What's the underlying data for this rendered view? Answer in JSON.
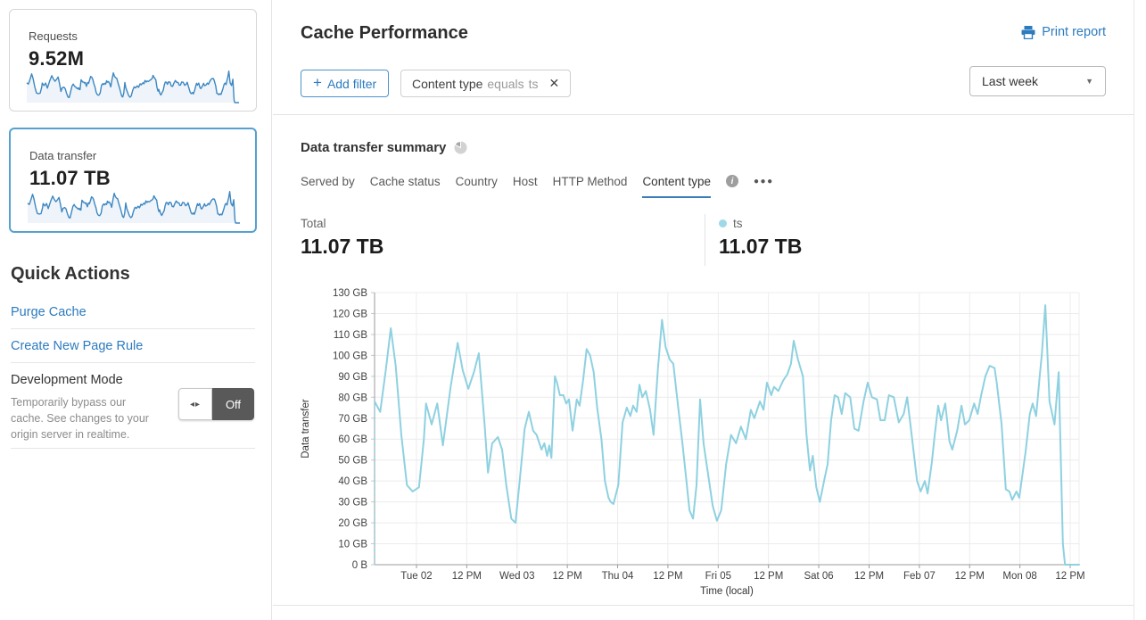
{
  "colors": {
    "accent_blue": "#2c7bbf",
    "chart_line": "#8ed1e0",
    "legend_dot": "#9fd8e6",
    "sparkline": "#3d87c2",
    "selected_card_border": "#55a1d0",
    "tab_underline": "#3a7cb8",
    "toggle_off_bg": "#595959"
  },
  "icons": {
    "plus": "+",
    "close": "✕",
    "caret": "▼",
    "dots": "●●●",
    "toggle_arrows": "◂▸",
    "info": "i"
  },
  "sidebar": {
    "requests_card": {
      "label": "Requests",
      "value": "9.52M"
    },
    "transfer_card": {
      "label": "Data transfer",
      "value": "11.07 TB"
    },
    "quick_actions": {
      "title": "Quick Actions",
      "links": [
        "Purge Cache",
        "Create New Page Rule"
      ],
      "dev_mode": {
        "title": "Development Mode",
        "description": "Temporarily bypass our cache. See changes to your origin server in realtime.",
        "toggle_state": "Off"
      }
    }
  },
  "header": {
    "title": "Cache Performance",
    "print_label": "Print report"
  },
  "filters": {
    "add_label": "Add filter",
    "chip": {
      "field": "Content type",
      "operator": "equals",
      "value": "ts"
    },
    "range_label": "Last week"
  },
  "summary": {
    "title": "Data transfer summary",
    "tabs": [
      {
        "label": "Served by",
        "active": false
      },
      {
        "label": "Cache status",
        "active": false
      },
      {
        "label": "Country",
        "active": false
      },
      {
        "label": "Host",
        "active": false
      },
      {
        "label": "HTTP Method",
        "active": false
      },
      {
        "label": "Content type",
        "active": true,
        "info": true
      }
    ],
    "total_label": "Total",
    "total_value": "11.07 TB",
    "legend": {
      "name": "ts",
      "value": "11.07 TB",
      "color": "#9fd8e6"
    }
  },
  "chart_data": {
    "type": "line",
    "title": "Data transfer summary — Content type",
    "xlabel": "Time (local)",
    "ylabel": "Data transfer",
    "ylim_gb": [
      0,
      130
    ],
    "grid": true,
    "legend_position": "above-right",
    "y_ticks": [
      "0 B",
      "10 GB",
      "20 GB",
      "30 GB",
      "40 GB",
      "50 GB",
      "60 GB",
      "70 GB",
      "80 GB",
      "90 GB",
      "100 GB",
      "110 GB",
      "120 GB",
      "130 GB"
    ],
    "x_ticks": [
      "Tue 02",
      "12 PM",
      "Wed 03",
      "12 PM",
      "Thu 04",
      "12 PM",
      "Fri 05",
      "12 PM",
      "Sat 06",
      "12 PM",
      "Feb 07",
      "12 PM",
      "Mon 08",
      "12 PM"
    ],
    "intro_dash": {
      "from": [
        0.0,
        0
      ],
      "to": [
        0.0,
        78
      ]
    },
    "series": [
      {
        "name": "ts",
        "color": "#8ed1e0",
        "points_gb": [
          [
            0.0,
            78
          ],
          [
            0.008,
            73
          ],
          [
            0.016,
            93
          ],
          [
            0.023,
            113
          ],
          [
            0.03,
            95
          ],
          [
            0.038,
            62
          ],
          [
            0.046,
            38
          ],
          [
            0.054,
            35
          ],
          [
            0.063,
            37
          ],
          [
            0.07,
            60
          ],
          [
            0.073,
            77
          ],
          [
            0.081,
            67
          ],
          [
            0.089,
            77
          ],
          [
            0.097,
            57
          ],
          [
            0.108,
            85
          ],
          [
            0.118,
            106
          ],
          [
            0.125,
            93
          ],
          [
            0.133,
            84
          ],
          [
            0.141,
            92
          ],
          [
            0.148,
            101
          ],
          [
            0.156,
            68
          ],
          [
            0.161,
            44
          ],
          [
            0.167,
            58
          ],
          [
            0.175,
            61
          ],
          [
            0.181,
            55
          ],
          [
            0.187,
            38
          ],
          [
            0.194,
            22
          ],
          [
            0.2,
            20
          ],
          [
            0.206,
            40
          ],
          [
            0.213,
            65
          ],
          [
            0.219,
            73
          ],
          [
            0.225,
            64
          ],
          [
            0.23,
            62
          ],
          [
            0.237,
            55
          ],
          [
            0.241,
            58
          ],
          [
            0.245,
            52
          ],
          [
            0.248,
            57
          ],
          [
            0.251,
            51
          ],
          [
            0.256,
            90
          ],
          [
            0.259,
            87
          ],
          [
            0.263,
            81
          ],
          [
            0.268,
            81
          ],
          [
            0.272,
            77
          ],
          [
            0.276,
            79
          ],
          [
            0.281,
            64
          ],
          [
            0.287,
            79
          ],
          [
            0.291,
            76
          ],
          [
            0.296,
            88
          ],
          [
            0.301,
            103
          ],
          [
            0.306,
            100
          ],
          [
            0.311,
            92
          ],
          [
            0.316,
            75
          ],
          [
            0.322,
            60
          ],
          [
            0.327,
            40
          ],
          [
            0.332,
            32
          ],
          [
            0.335,
            30
          ],
          [
            0.339,
            29
          ],
          [
            0.346,
            38
          ],
          [
            0.352,
            68
          ],
          [
            0.358,
            75
          ],
          [
            0.363,
            71
          ],
          [
            0.367,
            76
          ],
          [
            0.372,
            73
          ],
          [
            0.376,
            86
          ],
          [
            0.38,
            80
          ],
          [
            0.385,
            83
          ],
          [
            0.391,
            74
          ],
          [
            0.396,
            62
          ],
          [
            0.402,
            93
          ],
          [
            0.408,
            117
          ],
          [
            0.413,
            104
          ],
          [
            0.419,
            98
          ],
          [
            0.424,
            96
          ],
          [
            0.43,
            78
          ],
          [
            0.437,
            58
          ],
          [
            0.442,
            42
          ],
          [
            0.447,
            26
          ],
          [
            0.452,
            22
          ],
          [
            0.457,
            38
          ],
          [
            0.462,
            79
          ],
          [
            0.467,
            58
          ],
          [
            0.473,
            44
          ],
          [
            0.48,
            28
          ],
          [
            0.486,
            21
          ],
          [
            0.492,
            26
          ],
          [
            0.499,
            48
          ],
          [
            0.506,
            62
          ],
          [
            0.513,
            58
          ],
          [
            0.52,
            66
          ],
          [
            0.527,
            60
          ],
          [
            0.534,
            74
          ],
          [
            0.539,
            70
          ],
          [
            0.547,
            78
          ],
          [
            0.552,
            74
          ],
          [
            0.557,
            87
          ],
          [
            0.563,
            81
          ],
          [
            0.567,
            85
          ],
          [
            0.573,
            83
          ],
          [
            0.58,
            88
          ],
          [
            0.586,
            91
          ],
          [
            0.591,
            96
          ],
          [
            0.595,
            107
          ],
          [
            0.601,
            98
          ],
          [
            0.608,
            90
          ],
          [
            0.613,
            62
          ],
          [
            0.618,
            45
          ],
          [
            0.622,
            52
          ],
          [
            0.627,
            37
          ],
          [
            0.632,
            30
          ],
          [
            0.638,
            40
          ],
          [
            0.643,
            48
          ],
          [
            0.648,
            69
          ],
          [
            0.653,
            81
          ],
          [
            0.658,
            80
          ],
          [
            0.663,
            72
          ],
          [
            0.668,
            82
          ],
          [
            0.675,
            80
          ],
          [
            0.681,
            65
          ],
          [
            0.687,
            64
          ],
          [
            0.694,
            78
          ],
          [
            0.7,
            87
          ],
          [
            0.706,
            80
          ],
          [
            0.713,
            79
          ],
          [
            0.718,
            69
          ],
          [
            0.724,
            69
          ],
          [
            0.73,
            81
          ],
          [
            0.737,
            80
          ],
          [
            0.744,
            68
          ],
          [
            0.751,
            72
          ],
          [
            0.756,
            80
          ],
          [
            0.763,
            60
          ],
          [
            0.77,
            40
          ],
          [
            0.775,
            35
          ],
          [
            0.781,
            40
          ],
          [
            0.785,
            34
          ],
          [
            0.791,
            49
          ],
          [
            0.795,
            62
          ],
          [
            0.8,
            76
          ],
          [
            0.804,
            69
          ],
          [
            0.81,
            77
          ],
          [
            0.816,
            59
          ],
          [
            0.82,
            55
          ],
          [
            0.827,
            64
          ],
          [
            0.833,
            76
          ],
          [
            0.838,
            67
          ],
          [
            0.844,
            69
          ],
          [
            0.851,
            77
          ],
          [
            0.856,
            72
          ],
          [
            0.861,
            81
          ],
          [
            0.867,
            90
          ],
          [
            0.873,
            95
          ],
          [
            0.88,
            94
          ],
          [
            0.883,
            87
          ],
          [
            0.89,
            67
          ],
          [
            0.896,
            36
          ],
          [
            0.901,
            35
          ],
          [
            0.905,
            31
          ],
          [
            0.911,
            35
          ],
          [
            0.915,
            32
          ],
          [
            0.924,
            54
          ],
          [
            0.93,
            72
          ],
          [
            0.934,
            77
          ],
          [
            0.939,
            71
          ],
          [
            0.944,
            90
          ],
          [
            0.947,
            100
          ],
          [
            0.952,
            124
          ],
          [
            0.958,
            78
          ],
          [
            0.965,
            67
          ],
          [
            0.971,
            92
          ],
          [
            0.977,
            10
          ],
          [
            0.98,
            0
          ],
          [
            0.987,
            0
          ],
          [
            1.0,
            0
          ]
        ]
      }
    ]
  }
}
